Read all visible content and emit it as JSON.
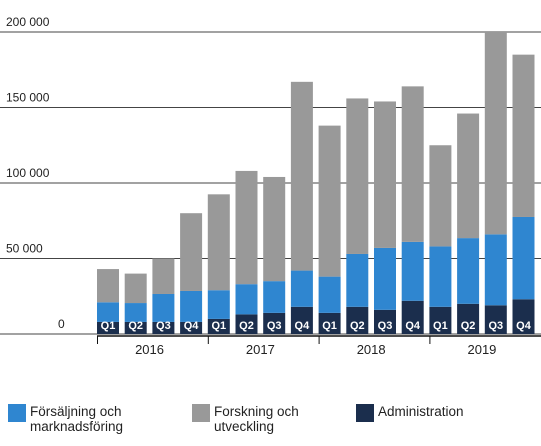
{
  "chart_data": {
    "type": "stacked_bar",
    "categories": [
      "Q1",
      "Q2",
      "Q3",
      "Q4",
      "Q1",
      "Q2",
      "Q3",
      "Q4",
      "Q1",
      "Q2",
      "Q3",
      "Q4",
      "Q1",
      "Q2",
      "Q3",
      "Q4"
    ],
    "years": [
      "2016",
      "2017",
      "2018",
      "2019"
    ],
    "series": [
      {
        "name": "Administration",
        "color": "#1b2e4d",
        "values": [
          8000,
          8000,
          8000,
          8000,
          10000,
          13000,
          14000,
          18000,
          14000,
          18000,
          16000,
          22000,
          18000,
          20000,
          19000,
          23000
        ]
      },
      {
        "name": "Försäljning och marknadsföring",
        "color": "#2f86d0",
        "values": [
          13000,
          12500,
          18500,
          20500,
          19000,
          20000,
          21000,
          24000,
          24000,
          35000,
          41000,
          39000,
          40000,
          43500,
          47000,
          54500
        ]
      },
      {
        "name": "Forskning och utveckling",
        "color": "#999999",
        "values": [
          22000,
          19500,
          23500,
          51500,
          63500,
          75000,
          69000,
          125000,
          100000,
          103000,
          97000,
          103000,
          67000,
          82500,
          134000,
          107500
        ]
      }
    ],
    "legend_order": [
      1,
      2,
      0
    ],
    "ylim": [
      0,
      200000
    ],
    "yticks": [
      0,
      {
        "value": 50000,
        "label": "50 000"
      },
      {
        "value": 100000,
        "label": "100 000"
      },
      {
        "value": 150000,
        "label": "150 000"
      },
      {
        "value": 200000,
        "label": "200 000"
      }
    ],
    "grid": true
  }
}
